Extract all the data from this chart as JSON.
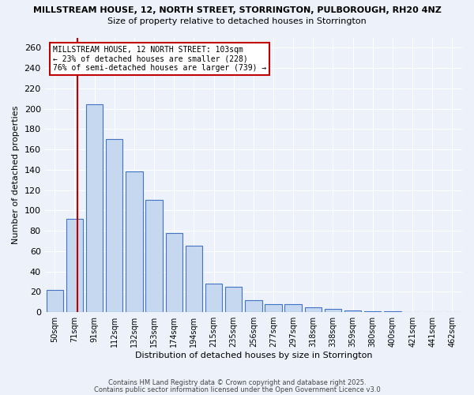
{
  "title1": "MILLSTREAM HOUSE, 12, NORTH STREET, STORRINGTON, PULBOROUGH, RH20 4NZ",
  "title2": "Size of property relative to detached houses in Storrington",
  "xlabel": "Distribution of detached houses by size in Storrington",
  "ylabel": "Number of detached properties",
  "bins": [
    "50sqm",
    "71sqm",
    "91sqm",
    "112sqm",
    "132sqm",
    "153sqm",
    "174sqm",
    "194sqm",
    "215sqm",
    "235sqm",
    "256sqm",
    "277sqm",
    "297sqm",
    "318sqm",
    "338sqm",
    "359sqm",
    "380sqm",
    "400sqm",
    "421sqm",
    "441sqm",
    "462sqm"
  ],
  "values": [
    22,
    92,
    204,
    170,
    138,
    110,
    78,
    65,
    28,
    25,
    12,
    8,
    8,
    5,
    3,
    2,
    1,
    1,
    0,
    0,
    0
  ],
  "bar_color": "#c5d8f0",
  "bar_edge_color": "#4472c4",
  "vline_x": 1.15,
  "vline_color": "#c00000",
  "annotation_text": "MILLSTREAM HOUSE, 12 NORTH STREET: 103sqm\n← 23% of detached houses are smaller (228)\n76% of semi-detached houses are larger (739) →",
  "annotation_box_color": "#ffffff",
  "annotation_border_color": "#c00000",
  "ylim": [
    0,
    270
  ],
  "yticks": [
    0,
    20,
    40,
    60,
    80,
    100,
    120,
    140,
    160,
    180,
    200,
    220,
    240,
    260
  ],
  "footer1": "Contains HM Land Registry data © Crown copyright and database right 2025.",
  "footer2": "Contains public sector information licensed under the Open Government Licence v3.0",
  "background_color": "#edf2fa"
}
